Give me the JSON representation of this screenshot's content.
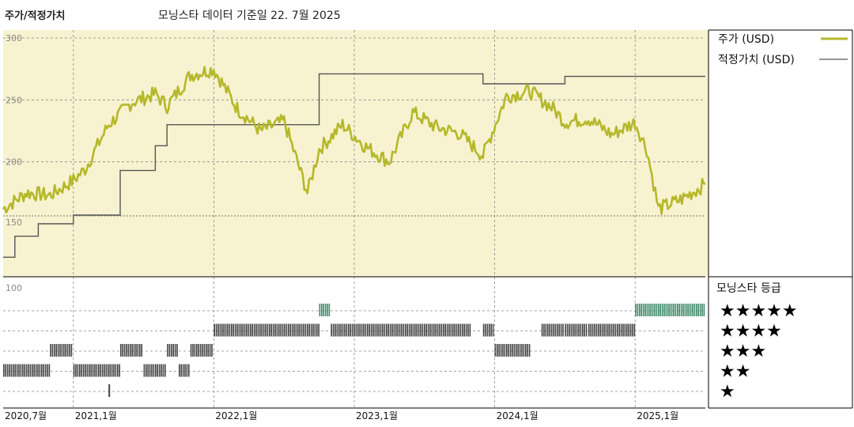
{
  "header": {
    "title": "주가/적정가치",
    "subtitle": "모닝스타 데이터 기준일 22. 7월 2025"
  },
  "legend": {
    "price": "주가 (USD)",
    "fair_value": "적정가치 (USD)",
    "rating_title": "모닝스타 등급"
  },
  "colors": {
    "price_line": "#b5b82a",
    "fair_value_line": "#555555",
    "plot_bg": "#f7f3d0",
    "rating_bar": "#444444",
    "rating_bar_5": "#3f8a6a"
  },
  "chart_data": [
    {
      "type": "line",
      "title": "주가/적정가치",
      "ylim": [
        150,
        300
      ],
      "yticks": [
        "150",
        "200",
        "250",
        "300"
      ],
      "x_range": [
        "2020-07",
        "2025-07"
      ],
      "x_labels": [
        "2020,7월",
        "2021,1월",
        "2022,1월",
        "2023,1월",
        "2024,1월",
        "2025,1월"
      ],
      "grid": true,
      "series": [
        {
          "name": "주가 (USD)",
          "x": [
            "2020-07",
            "2020-09",
            "2020-11",
            "2021-01",
            "2021-02",
            "2021-04",
            "2021-06",
            "2021-08",
            "2021-09",
            "2021-11",
            "2022-01",
            "2022-03",
            "2022-05",
            "2022-07",
            "2022-09",
            "2022-10",
            "2022-12",
            "2023-02",
            "2023-04",
            "2023-06",
            "2023-08",
            "2023-10",
            "2023-12",
            "2024-02",
            "2024-04",
            "2024-06",
            "2024-07",
            "2024-09",
            "2024-11",
            "2025-01",
            "2025-02",
            "2025-03",
            "2025-05",
            "2025-07"
          ],
          "values": [
            162,
            175,
            173,
            185,
            194,
            230,
            248,
            255,
            245,
            270,
            275,
            243,
            225,
            233,
            175,
            210,
            230,
            212,
            200,
            240,
            228,
            223,
            205,
            253,
            257,
            243,
            232,
            235,
            222,
            232,
            210,
            162,
            170,
            182
          ]
        },
        {
          "name": "적정가치 (USD)",
          "x": [
            "2020-07",
            "2020-08",
            "2020-10",
            "2021-01",
            "2021-05",
            "2021-08",
            "2021-09",
            "2022-10",
            "2023-12",
            "2024-07",
            "2025-07"
          ],
          "values": [
            123,
            140,
            150,
            157,
            193,
            213,
            230,
            271,
            263,
            269,
            269
          ]
        }
      ]
    },
    {
      "type": "bar",
      "title": "모닝스타 등급",
      "ylim": [
        0,
        100
      ],
      "yticks": [
        "100"
      ],
      "rating_levels": [
        "★★★★★",
        "★★★★",
        "★★★",
        "★★",
        "★"
      ],
      "ratings": [
        {
          "from": "2020-07",
          "to": "2020-11",
          "stars": 2
        },
        {
          "from": "2020-11",
          "to": "2021-01",
          "stars": 3
        },
        {
          "from": "2021-01",
          "to": "2021-05",
          "stars": 2
        },
        {
          "from": "2021-05",
          "to": "2021-07",
          "stars": 3
        },
        {
          "from": "2021-07",
          "to": "2021-09",
          "stars": 2
        },
        {
          "from": "2021-09",
          "to": "2021-10",
          "stars": 3
        },
        {
          "from": "2021-10",
          "to": "2021-11",
          "stars": 2
        },
        {
          "from": "2021-11",
          "to": "2022-01",
          "stars": 3
        },
        {
          "from": "2022-01",
          "to": "2022-10",
          "stars": 4
        },
        {
          "from": "2022-10",
          "to": "2022-11",
          "stars": 5
        },
        {
          "from": "2022-11",
          "to": "2023-11",
          "stars": 4
        },
        {
          "from": "2023-12",
          "to": "2024-01",
          "stars": 4
        },
        {
          "from": "2024-01",
          "to": "2024-04",
          "stars": 3
        },
        {
          "from": "2024-05",
          "to": "2024-07",
          "stars": 4
        },
        {
          "from": "2024-07",
          "to": "2024-09",
          "stars": 4
        },
        {
          "from": "2024-09",
          "to": "2025-01",
          "stars": 4
        },
        {
          "from": "2025-01",
          "to": "2025-07",
          "stars": 5
        }
      ]
    }
  ]
}
